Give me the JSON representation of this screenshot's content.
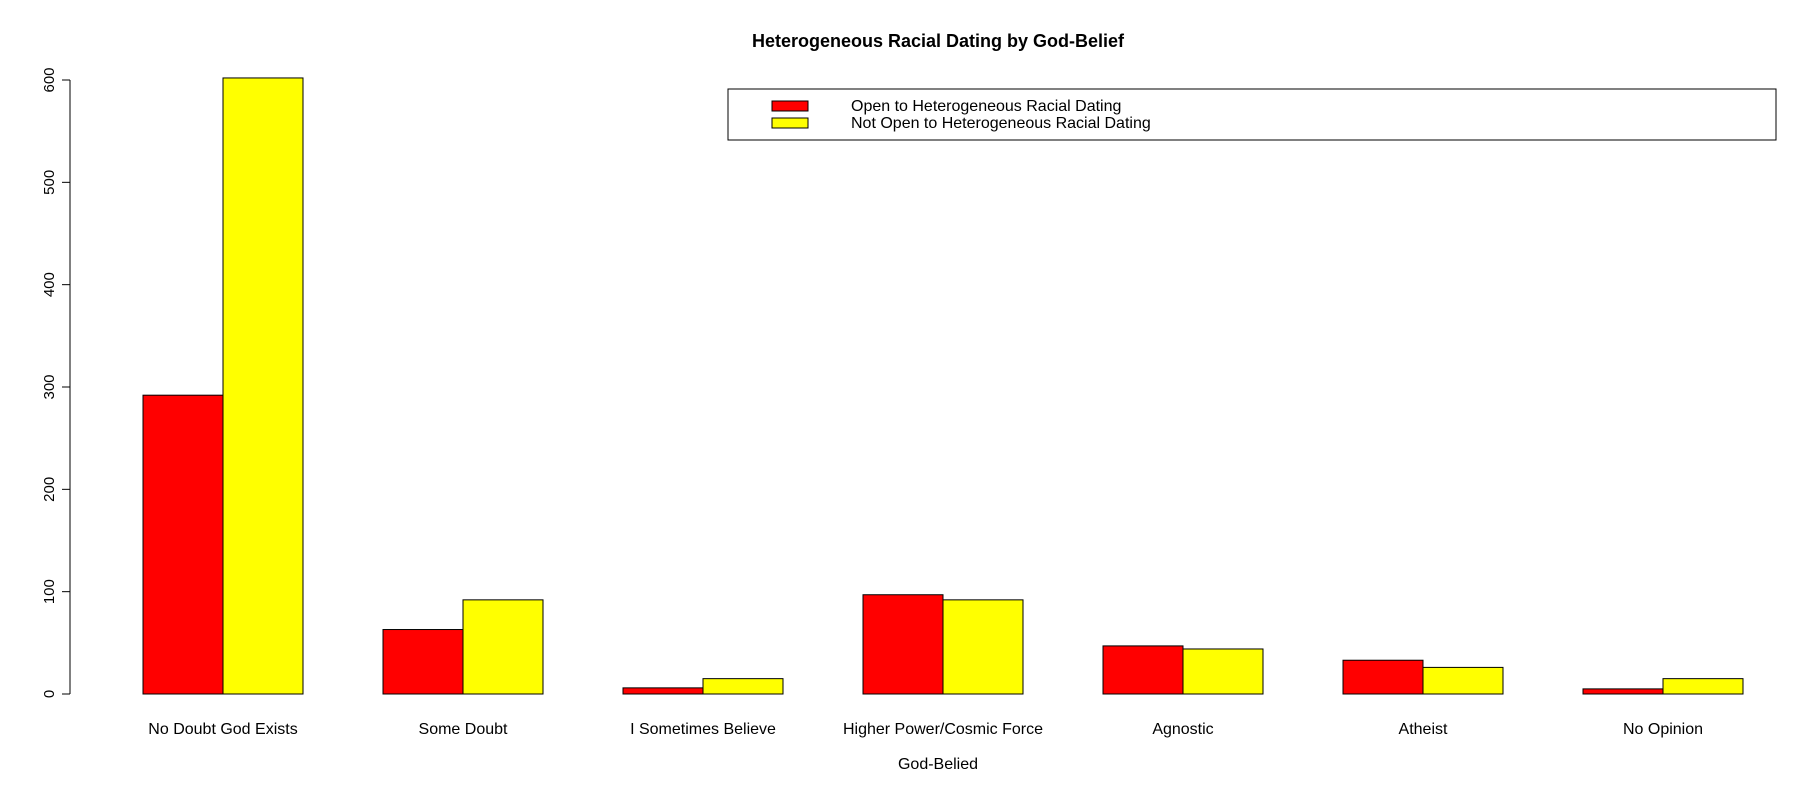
{
  "chart_data": {
    "type": "bar",
    "title": "Heterogeneous Racial Dating by God-Belief",
    "xlabel": "God-Belied",
    "ylabel": "",
    "categories": [
      "No Doubt God Exists",
      "Some Doubt",
      "I Sometimes Believe",
      "Higher Power/Cosmic Force",
      "Agnostic",
      "Atheist",
      "No Opinion"
    ],
    "series": [
      {
        "name": "Open to Heterogeneous Racial Dating",
        "color": "#ff0000",
        "values": [
          292,
          63,
          6,
          97,
          47,
          33,
          5
        ]
      },
      {
        "name": "Not Open to Heterogeneous Racial Dating",
        "color": "#ffff00",
        "values": [
          602,
          92,
          15,
          92,
          44,
          26,
          15
        ]
      }
    ],
    "ylim": [
      0,
      600
    ],
    "yticks": [
      0,
      100,
      200,
      300,
      400,
      500,
      600
    ],
    "grid": false,
    "legend_position": "top-right"
  }
}
